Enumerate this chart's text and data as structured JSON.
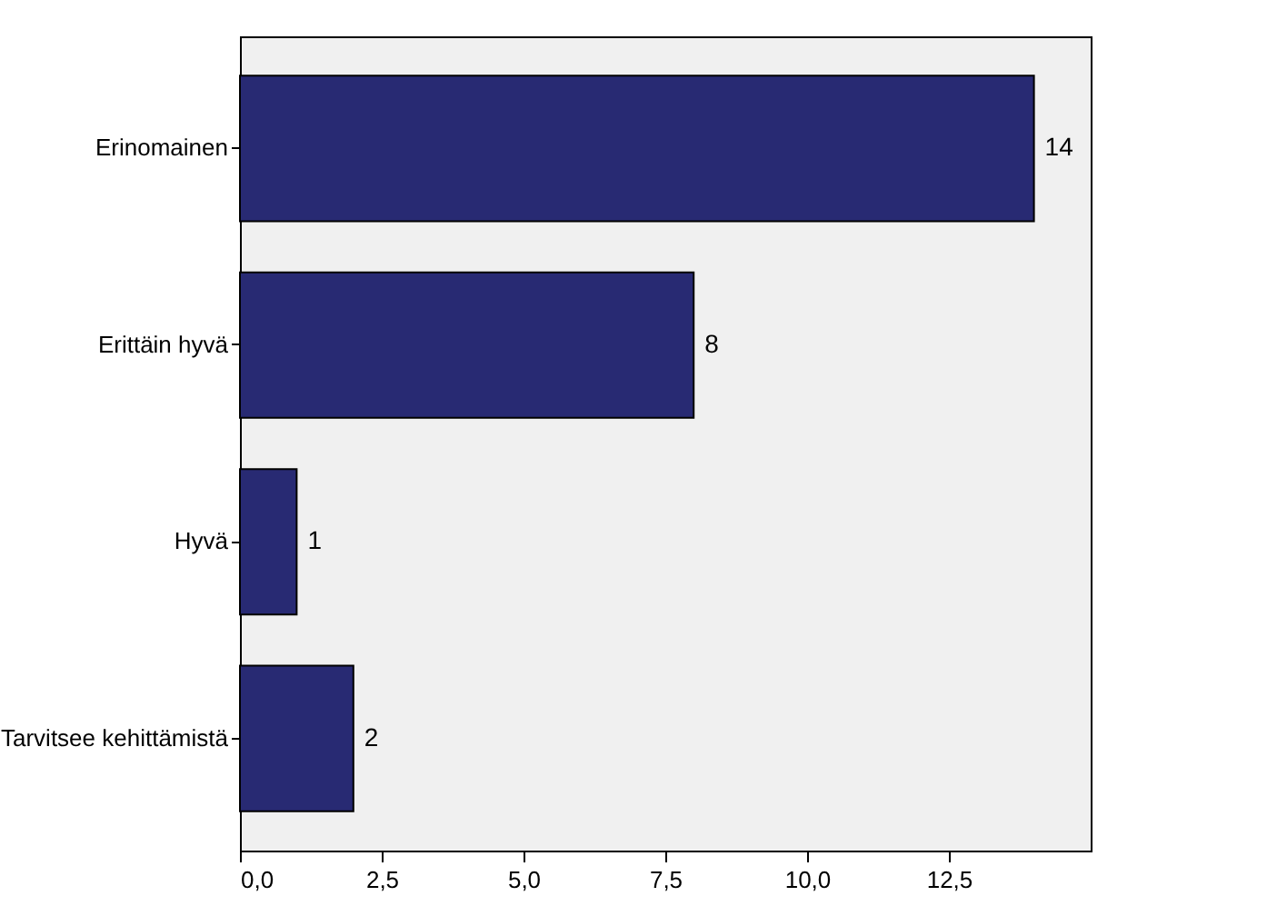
{
  "chart_data": {
    "type": "bar",
    "orientation": "horizontal",
    "categories": [
      "Erinomainen",
      "Erittäin hyvä",
      "Hyvä",
      "Tarvitsee kehittämistä"
    ],
    "values": [
      14,
      8,
      1,
      2
    ],
    "color": "#282a73",
    "xlim": [
      0,
      15
    ],
    "xticks": [
      {
        "value": 0,
        "label": "0,0"
      },
      {
        "value": 2.5,
        "label": "2,5"
      },
      {
        "value": 5,
        "label": "5,0"
      },
      {
        "value": 7.5,
        "label": "7,5"
      },
      {
        "value": 10,
        "label": "10,0"
      },
      {
        "value": 12.5,
        "label": "12,5"
      }
    ],
    "data_labels": true,
    "grid": false
  }
}
